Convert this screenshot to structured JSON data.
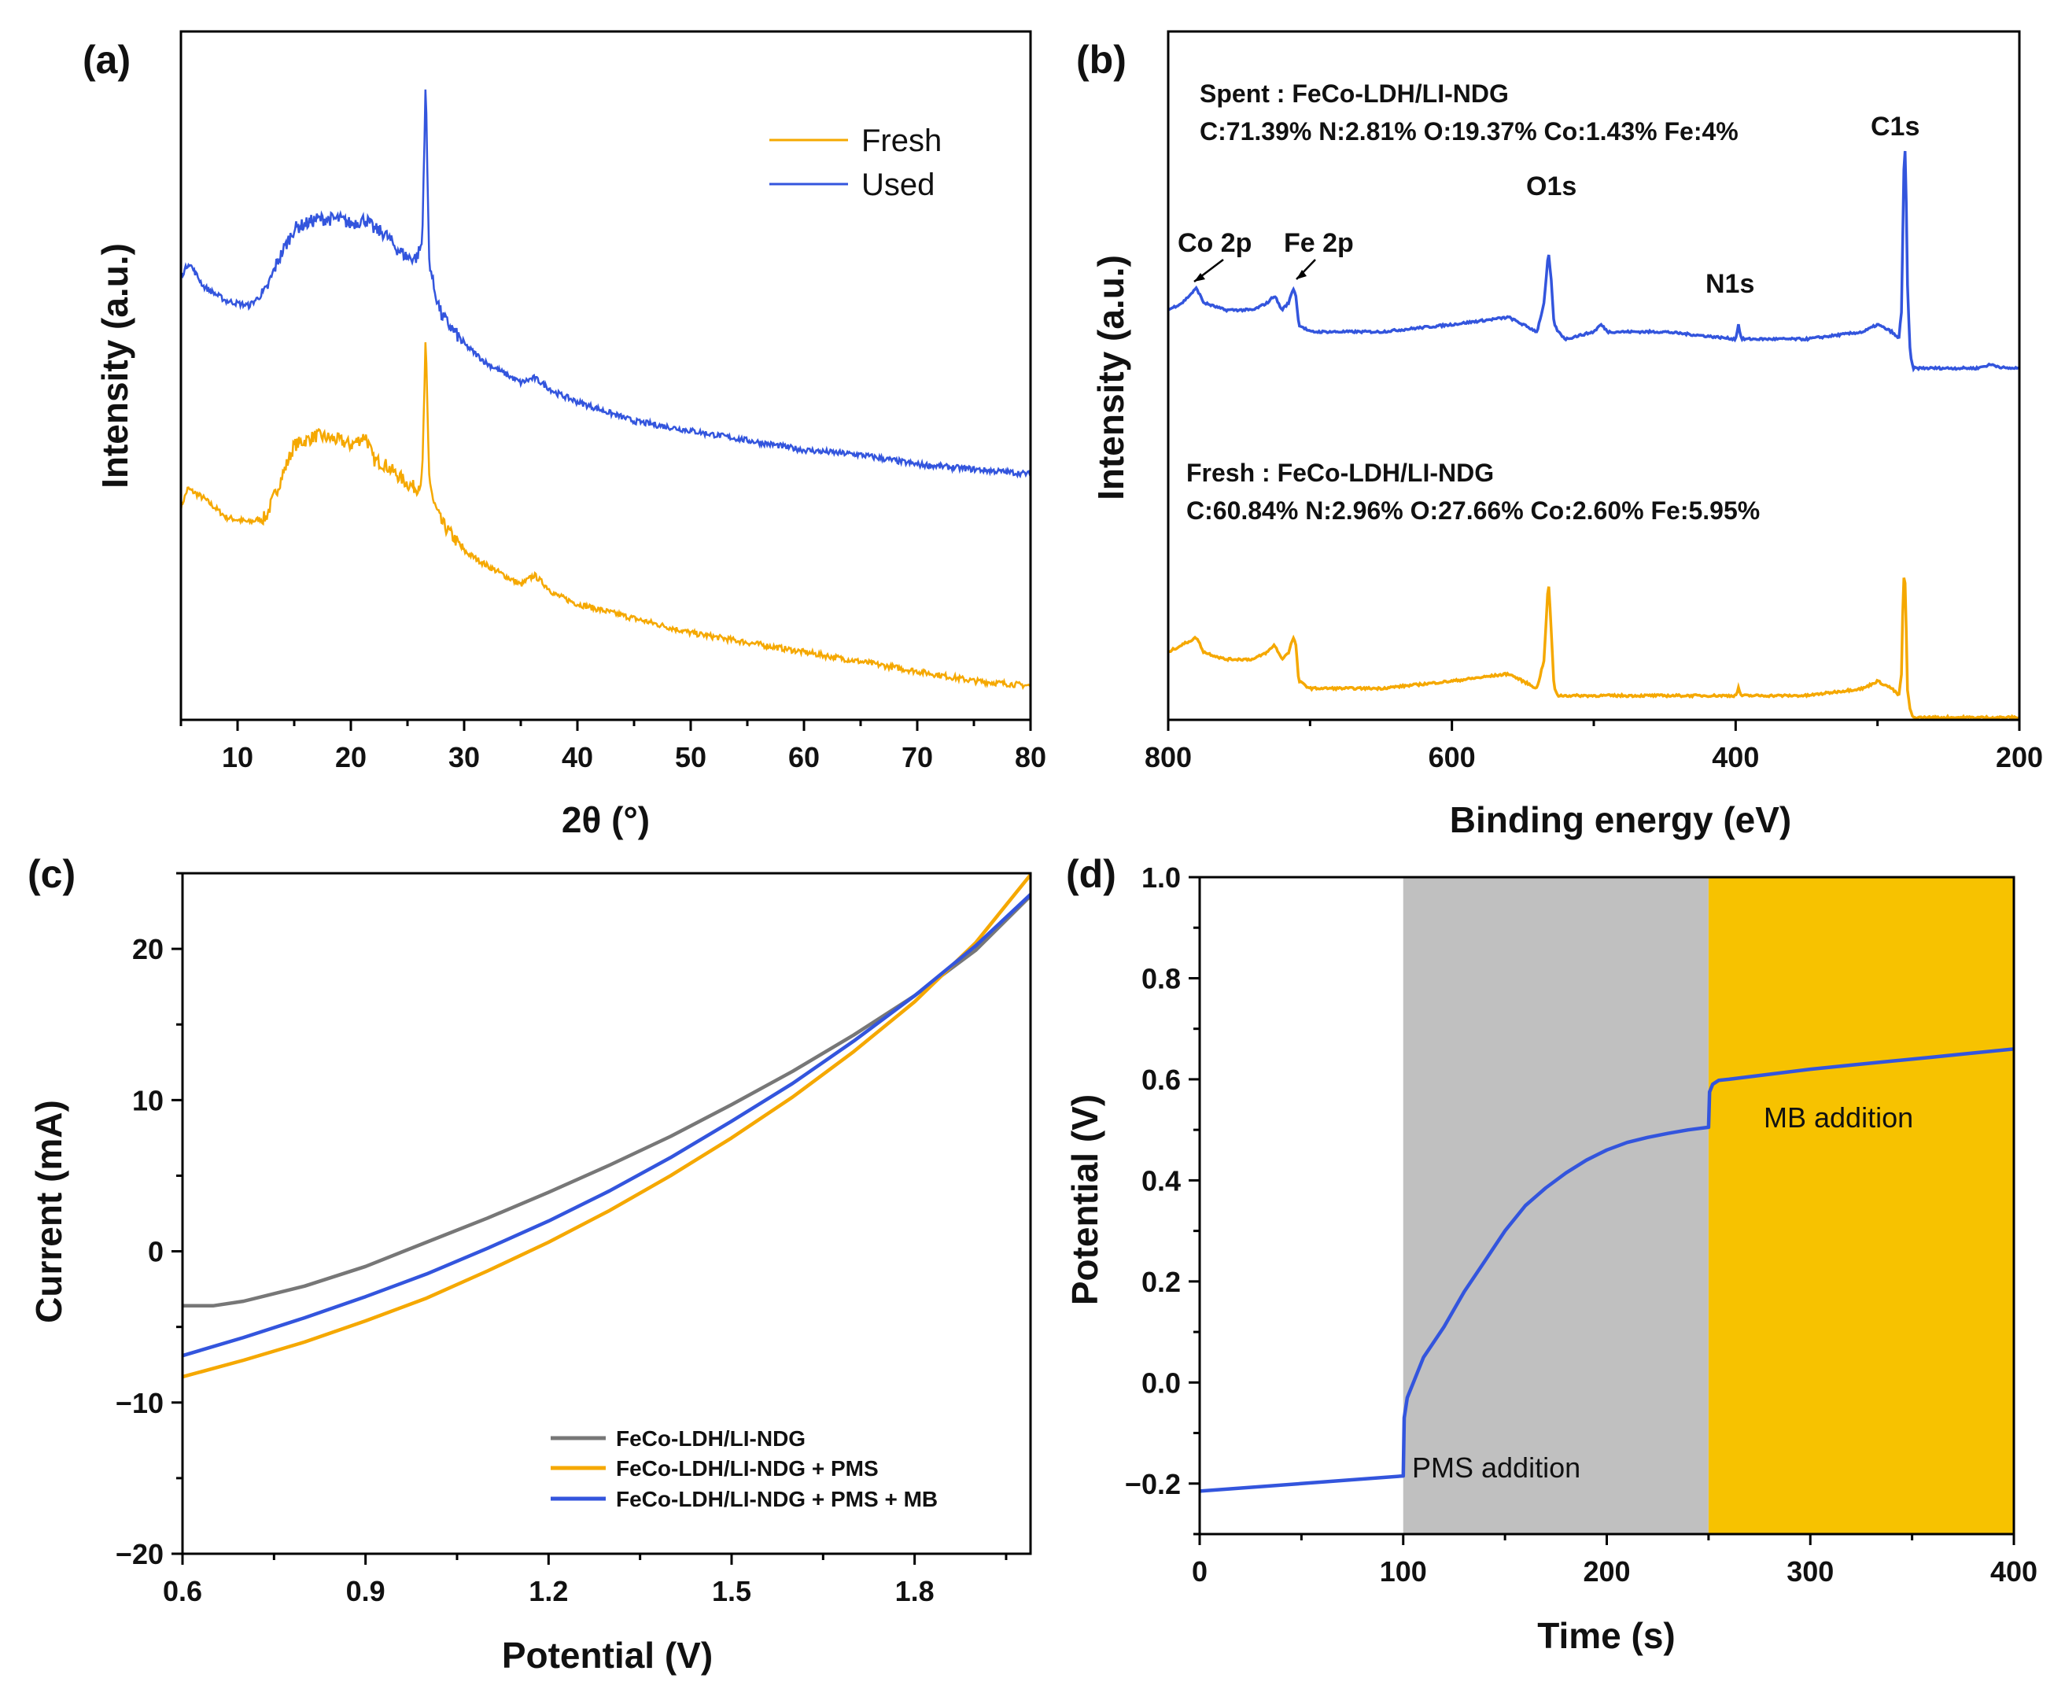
{
  "chart_data": [
    {
      "id": "a",
      "panel_label": "(a)",
      "type": "line",
      "title": "",
      "xlabel": "2θ (°)",
      "ylabel": "Intensity (a.u.)",
      "xlim": [
        5,
        80
      ],
      "xticks": [
        "10",
        "20",
        "30",
        "40",
        "50",
        "60",
        "70",
        "80"
      ],
      "xtick_values": [
        10,
        20,
        30,
        40,
        50,
        60,
        70,
        80
      ],
      "legend": [
        "Fresh",
        "Used"
      ],
      "colors": {
        "Fresh": "#f5a800",
        "Used": "#3355dd"
      },
      "series": [
        {
          "name": "Fresh",
          "x": [
            5,
            5.6,
            7,
            9,
            11,
            12.5,
            13.5,
            15,
            17,
            19,
            20,
            21.3,
            22,
            23,
            24,
            25,
            25.8,
            26.3,
            26.6,
            26.9,
            27.3,
            28,
            30,
            32,
            35,
            36.2,
            38,
            40,
            45,
            50,
            55,
            60,
            65,
            70,
            75,
            80
          ],
          "y": [
            0.4,
            0.44,
            0.42,
            0.38,
            0.37,
            0.38,
            0.44,
            0.53,
            0.55,
            0.54,
            0.53,
            0.55,
            0.5,
            0.49,
            0.47,
            0.45,
            0.44,
            0.46,
            0.75,
            0.47,
            0.41,
            0.37,
            0.31,
            0.28,
            0.24,
            0.26,
            0.22,
            0.2,
            0.17,
            0.14,
            0.12,
            0.1,
            0.08,
            0.06,
            0.04,
            0.03
          ]
        },
        {
          "name": "Used",
          "x": [
            5,
            5.7,
            7,
            9,
            11,
            12.5,
            13.5,
            15,
            17,
            19,
            20,
            21.3,
            22,
            23,
            24,
            25,
            25.8,
            26.3,
            26.6,
            26.9,
            27.3,
            28,
            30,
            32,
            35,
            36.2,
            38,
            40,
            45,
            50,
            55,
            60,
            65,
            70,
            75,
            80
          ],
          "y": [
            0.88,
            0.91,
            0.86,
            0.83,
            0.82,
            0.85,
            0.91,
            0.98,
            1.0,
            1.0,
            0.99,
            1.0,
            0.98,
            0.97,
            0.94,
            0.92,
            0.92,
            0.95,
            1.29,
            0.92,
            0.86,
            0.8,
            0.74,
            0.7,
            0.66,
            0.67,
            0.64,
            0.62,
            0.58,
            0.56,
            0.54,
            0.52,
            0.51,
            0.49,
            0.48,
            0.47
          ]
        }
      ]
    },
    {
      "id": "b",
      "panel_label": "(b)",
      "type": "line",
      "title": "",
      "xlabel": "Binding energy (eV)",
      "ylabel": "Intensity (a.u.)",
      "xlim": [
        800,
        200
      ],
      "xticks": [
        "800",
        "600",
        "400",
        "200"
      ],
      "xtick_values": [
        800,
        600,
        400,
        200
      ],
      "colors": {
        "Spent": "#3355dd",
        "Fresh": "#f5a800"
      },
      "series": [
        {
          "name": "Spent",
          "x": [
            800,
            790,
            780,
            775,
            760,
            740,
            730,
            725,
            720,
            715,
            712,
            710,
            708,
            700,
            650,
            600,
            560,
            550,
            540,
            535,
            532,
            530,
            528,
            525,
            520,
            500,
            495,
            490,
            450,
            400,
            398,
            396,
            350,
            310,
            300,
            290,
            285,
            283,
            282,
            281,
            280,
            279,
            277,
            275,
            260,
            230,
            220,
            210,
            200
          ],
          "y": [
            0.72,
            0.73,
            0.75,
            0.73,
            0.72,
            0.72,
            0.73,
            0.74,
            0.72,
            0.73,
            0.75,
            0.74,
            0.7,
            0.69,
            0.69,
            0.7,
            0.71,
            0.7,
            0.69,
            0.73,
            0.8,
            0.76,
            0.7,
            0.69,
            0.68,
            0.69,
            0.7,
            0.69,
            0.69,
            0.68,
            0.7,
            0.68,
            0.68,
            0.69,
            0.7,
            0.69,
            0.68,
            0.72,
            0.85,
            0.96,
            0.91,
            0.76,
            0.66,
            0.64,
            0.64,
            0.64,
            0.645,
            0.64,
            0.64
          ]
        },
        {
          "name": "Fresh",
          "x": [
            800,
            790,
            780,
            775,
            760,
            740,
            730,
            725,
            720,
            715,
            712,
            710,
            708,
            700,
            650,
            600,
            560,
            550,
            540,
            535,
            532,
            530,
            528,
            525,
            520,
            500,
            450,
            400,
            398,
            396,
            350,
            310,
            300,
            290,
            285,
            283,
            282,
            281,
            280,
            279,
            277,
            275,
            260,
            230,
            200
          ],
          "y": [
            0.25,
            0.26,
            0.27,
            0.25,
            0.24,
            0.24,
            0.25,
            0.26,
            0.24,
            0.25,
            0.27,
            0.26,
            0.21,
            0.2,
            0.2,
            0.21,
            0.22,
            0.21,
            0.2,
            0.24,
            0.35,
            0.28,
            0.2,
            0.19,
            0.19,
            0.19,
            0.19,
            0.19,
            0.2,
            0.19,
            0.19,
            0.2,
            0.21,
            0.2,
            0.19,
            0.22,
            0.33,
            0.37,
            0.31,
            0.2,
            0.17,
            0.16,
            0.16,
            0.16,
            0.16
          ]
        }
      ],
      "annotations": {
        "spent_title": "Spent : FeCo-LDH/LI-NDG",
        "spent_comp": "C:71.39%  N:2.81%  O:19.37%  Co:1.43%  Fe:4%",
        "fresh_title": "Fresh : FeCo-LDH/LI-NDG",
        "fresh_comp": "C:60.84%  N:2.96%  O:27.66%  Co:2.60%  Fe:5.95%",
        "peaks": [
          "Co 2p",
          "Fe 2p",
          "O1s",
          "N1s",
          "C1s"
        ]
      }
    },
    {
      "id": "c",
      "panel_label": "(c)",
      "type": "line",
      "title": "",
      "xlabel": "Potential (V)",
      "ylabel": "Current (mA)",
      "xlim": [
        0.6,
        1.99
      ],
      "ylim": [
        -20,
        25
      ],
      "xticks": [
        "0.6",
        "0.9",
        "1.2",
        "1.5",
        "1.8"
      ],
      "xtick_values": [
        0.6,
        0.9,
        1.2,
        1.5,
        1.8
      ],
      "yticks": [
        "−20",
        "−10",
        "0",
        "10",
        "20"
      ],
      "ytick_values": [
        -20,
        -10,
        0,
        10,
        20
      ],
      "legend": [
        "FeCo-LDH/LI-NDG",
        "FeCo-LDH/LI-NDG + PMS",
        "FeCo-LDH/LI-NDG + PMS + MB"
      ],
      "colors": {
        "FeCo-LDH/LI-NDG": "#777777",
        "FeCo-LDH/LI-NDG + PMS": "#f5a800",
        "FeCo-LDH/LI-NDG + PMS + MB": "#3355dd"
      },
      "series": [
        {
          "name": "FeCo-LDH/LI-NDG",
          "x": [
            0.6,
            0.65,
            0.7,
            0.8,
            0.9,
            1.0,
            1.1,
            1.2,
            1.3,
            1.4,
            1.5,
            1.6,
            1.7,
            1.8,
            1.9,
            1.99
          ],
          "y": [
            -3.6,
            -3.6,
            -3.3,
            -2.3,
            -1.0,
            0.6,
            2.2,
            3.9,
            5.7,
            7.6,
            9.7,
            11.9,
            14.3,
            16.9,
            19.9,
            23.5
          ]
        },
        {
          "name": "FeCo-LDH/LI-NDG + PMS",
          "x": [
            0.6,
            0.7,
            0.8,
            0.9,
            1.0,
            1.1,
            1.2,
            1.3,
            1.4,
            1.5,
            1.6,
            1.7,
            1.8,
            1.9,
            1.99
          ],
          "y": [
            -8.3,
            -7.2,
            -6.0,
            -4.6,
            -3.1,
            -1.3,
            0.6,
            2.7,
            5.0,
            7.5,
            10.2,
            13.2,
            16.5,
            20.4,
            24.9
          ]
        },
        {
          "name": "FeCo-LDH/LI-NDG + PMS + MB",
          "x": [
            0.6,
            0.7,
            0.8,
            0.9,
            1.0,
            1.1,
            1.2,
            1.3,
            1.4,
            1.5,
            1.6,
            1.7,
            1.8,
            1.9,
            1.99
          ],
          "y": [
            -6.9,
            -5.7,
            -4.4,
            -3.0,
            -1.5,
            0.2,
            2.0,
            4.0,
            6.2,
            8.6,
            11.1,
            13.9,
            16.9,
            20.2,
            23.6
          ]
        }
      ]
    },
    {
      "id": "d",
      "panel_label": "(d)",
      "type": "line",
      "title": "",
      "xlabel": "Time (s)",
      "ylabel": "Potential (V)",
      "xlim": [
        0,
        400
      ],
      "ylim": [
        -0.3,
        1.0
      ],
      "xticks": [
        "0",
        "100",
        "200",
        "300",
        "400"
      ],
      "xtick_values": [
        0,
        100,
        200,
        300,
        400
      ],
      "yticks": [
        "−0.2",
        "0.0",
        "0.2",
        "0.4",
        "0.6",
        "0.8",
        "1.0"
      ],
      "ytick_values": [
        -0.2,
        0.0,
        0.2,
        0.4,
        0.6,
        0.8,
        1.0
      ],
      "regions": [
        {
          "name": "PMS",
          "x0": 100,
          "x1": 250,
          "color": "#c0c0c0"
        },
        {
          "name": "MB",
          "x0": 250,
          "x1": 400,
          "color": "#f7c200"
        }
      ],
      "annotations": [
        "PMS addition",
        "MB addition"
      ],
      "colors": {
        "line": "#3355dd"
      },
      "series": [
        {
          "name": "Potential",
          "x": [
            0,
            50,
            100,
            100.5,
            102,
            105,
            110,
            120,
            130,
            140,
            150,
            160,
            170,
            180,
            190,
            200,
            210,
            220,
            230,
            240,
            250,
            250.5,
            252,
            255,
            260,
            280,
            300,
            320,
            340,
            360,
            380,
            400
          ],
          "y": [
            -0.215,
            -0.2,
            -0.185,
            -0.07,
            -0.03,
            0.0,
            0.05,
            0.11,
            0.18,
            0.24,
            0.3,
            0.35,
            0.385,
            0.415,
            0.44,
            0.46,
            0.475,
            0.485,
            0.493,
            0.5,
            0.505,
            0.575,
            0.59,
            0.598,
            0.6,
            0.61,
            0.62,
            0.628,
            0.636,
            0.644,
            0.652,
            0.66
          ]
        }
      ]
    }
  ]
}
